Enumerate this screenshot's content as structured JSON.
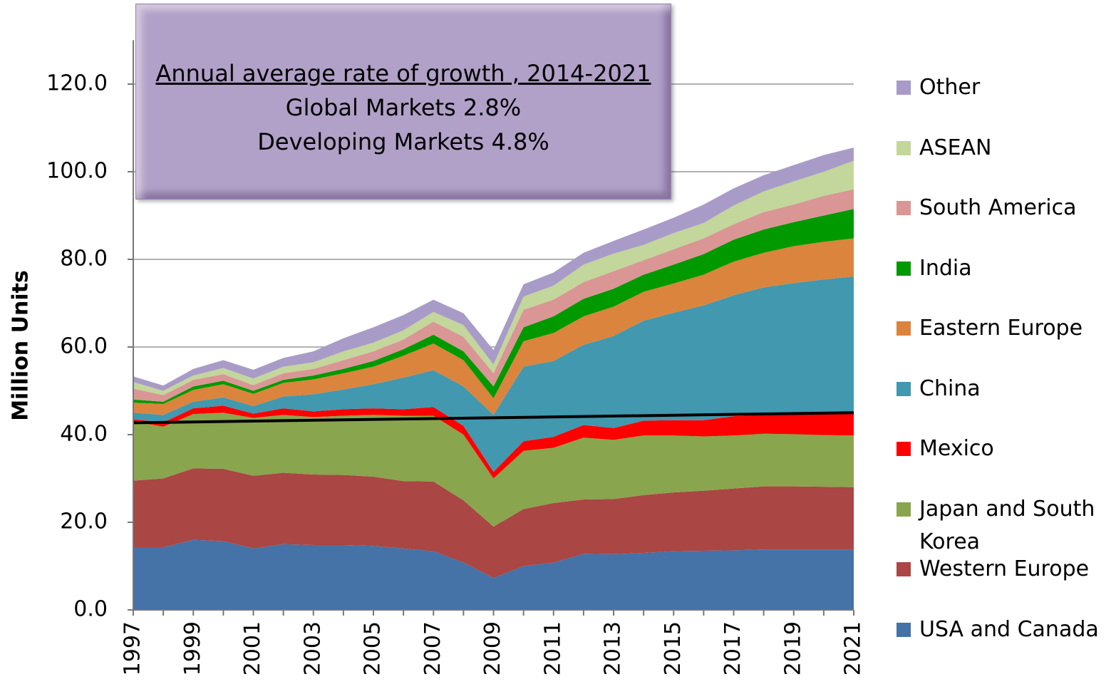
{
  "chart_data": {
    "type": "stacked-area",
    "y_label": "Million Units",
    "annotation": {
      "title": "Annual average rate of growth , 2014-2021",
      "lines": [
        "Global Markets 2.8%",
        "Developing Markets 4.8%"
      ]
    },
    "x": [
      1997,
      1998,
      1999,
      2000,
      2001,
      2002,
      2003,
      2004,
      2005,
      2006,
      2007,
      2008,
      2009,
      2010,
      2011,
      2012,
      2013,
      2014,
      2015,
      2016,
      2017,
      2018,
      2019,
      2020,
      2021
    ],
    "xlim": [
      1997,
      2021
    ],
    "xticks": [
      1997,
      1999,
      2001,
      2003,
      2005,
      2007,
      2009,
      2011,
      2013,
      2015,
      2017,
      2019,
      2021
    ],
    "ylim": [
      0,
      130
    ],
    "yticks": [
      {
        "value": 0,
        "label": "0.0"
      },
      {
        "value": 20,
        "label": "20.0"
      },
      {
        "value": 40,
        "label": "40.0"
      },
      {
        "value": 60,
        "label": "60.0"
      },
      {
        "value": 80,
        "label": "80.0"
      },
      {
        "value": 100,
        "label": "100.0"
      },
      {
        "value": 120,
        "label": "120.0"
      }
    ],
    "grid": true,
    "legend": "right",
    "series": [
      {
        "name": "USA and Canada",
        "color": "#4572a7",
        "values": [
          14.3,
          14.3,
          16,
          15.7,
          14,
          15,
          14.8,
          14.8,
          14.6,
          14,
          13.4,
          10.8,
          7.3,
          10,
          10.8,
          12.8,
          12.7,
          13,
          13.4,
          13.5,
          13.6,
          13.8,
          13.8,
          13.8,
          13.8
        ]
      },
      {
        "name": "Western Europe",
        "color": "#aa4643",
        "values": [
          15.2,
          15.7,
          16.3,
          16.5,
          16.6,
          16.3,
          16.1,
          16.0,
          15.8,
          15.4,
          15.9,
          14.2,
          11.7,
          13.0,
          13.6,
          12.4,
          12.6,
          13.2,
          13.4,
          13.7,
          14.1,
          14.4,
          14.4,
          14.3,
          14.2
        ]
      },
      {
        "name": "Japan and South Korea",
        "color": "#89a54e",
        "values": [
          13.5,
          11.8,
          12.4,
          12.8,
          13.2,
          13.2,
          13.1,
          13.5,
          14.1,
          14.9,
          15.0,
          15.0,
          11.0,
          13.3,
          12.6,
          14.1,
          13.5,
          13.6,
          13.0,
          12.4,
          12.1,
          12.0,
          11.9,
          11.8,
          11.8
        ]
      },
      {
        "name": "Mexico",
        "color": "#ff0000",
        "values": [
          0.5,
          1.0,
          1.3,
          1.6,
          1.0,
          1.5,
          1.3,
          1.5,
          1.5,
          1.5,
          2.0,
          2.0,
          1.5,
          2.2,
          2.5,
          2.9,
          2.7,
          3.4,
          3.5,
          3.7,
          4.4,
          4.3,
          4.7,
          5.1,
          5.4
        ]
      },
      {
        "name": "China",
        "color": "#4198af",
        "values": [
          1.5,
          1.7,
          1.5,
          1.9,
          1.7,
          2.7,
          3.9,
          4.5,
          5.5,
          7.2,
          8.4,
          9.0,
          13.0,
          17.0,
          17.3,
          18.3,
          21.0,
          22.8,
          24.5,
          26.2,
          27.6,
          29.1,
          29.8,
          30.4,
          30.9
        ]
      },
      {
        "name": "Eastern Europe",
        "color": "#db843d",
        "values": [
          2.3,
          2.5,
          2.7,
          3.0,
          2.8,
          3.1,
          3.4,
          3.7,
          4.0,
          5.0,
          6.1,
          6.0,
          3.8,
          5.8,
          6.4,
          6.5,
          6.7,
          6.6,
          6.7,
          7.0,
          7.7,
          7.9,
          8.4,
          8.6,
          8.7
        ]
      },
      {
        "name": "India",
        "color": "#009900",
        "values": [
          0.7,
          0.5,
          0.8,
          0.8,
          0.7,
          0.7,
          0.9,
          1.0,
          1.3,
          1.5,
          2.0,
          2.0,
          2.7,
          3.2,
          3.8,
          4.0,
          4.1,
          3.9,
          4.3,
          4.7,
          5.0,
          5.3,
          5.5,
          6.0,
          6.7
        ]
      },
      {
        "name": "South America",
        "color": "#d99694",
        "values": [
          2.5,
          1.5,
          1.5,
          1.5,
          1.3,
          1.5,
          1.5,
          2.0,
          2.2,
          2.2,
          3.0,
          3.3,
          3.0,
          4.0,
          3.8,
          3.8,
          4.0,
          3.3,
          3.5,
          3.6,
          3.5,
          4.0,
          4.0,
          4.5,
          4.5
        ]
      },
      {
        "name": "ASEAN",
        "color": "#c3d69b",
        "values": [
          1.5,
          1.0,
          1.0,
          1.4,
          1.5,
          1.5,
          1.5,
          2.0,
          2.0,
          2.1,
          2.2,
          2.7,
          2.0,
          3.0,
          3.2,
          4.0,
          4.0,
          3.5,
          3.7,
          3.5,
          4.3,
          4.7,
          5.3,
          5.5,
          6.5
        ]
      },
      {
        "name": "Other",
        "color": "#a99bc7",
        "values": [
          1.3,
          1.2,
          1.5,
          1.8,
          2.0,
          2.0,
          2.5,
          3.0,
          3.5,
          3.5,
          2.8,
          2.7,
          3.3,
          2.8,
          3.0,
          2.7,
          2.9,
          3.5,
          3.5,
          4.2,
          3.9,
          3.7,
          3.7,
          3.8,
          3.0
        ]
      }
    ],
    "trend_line": {
      "color": "#000000",
      "x": [
        1997,
        2021
      ],
      "values": [
        42.7,
        45.0
      ]
    }
  }
}
